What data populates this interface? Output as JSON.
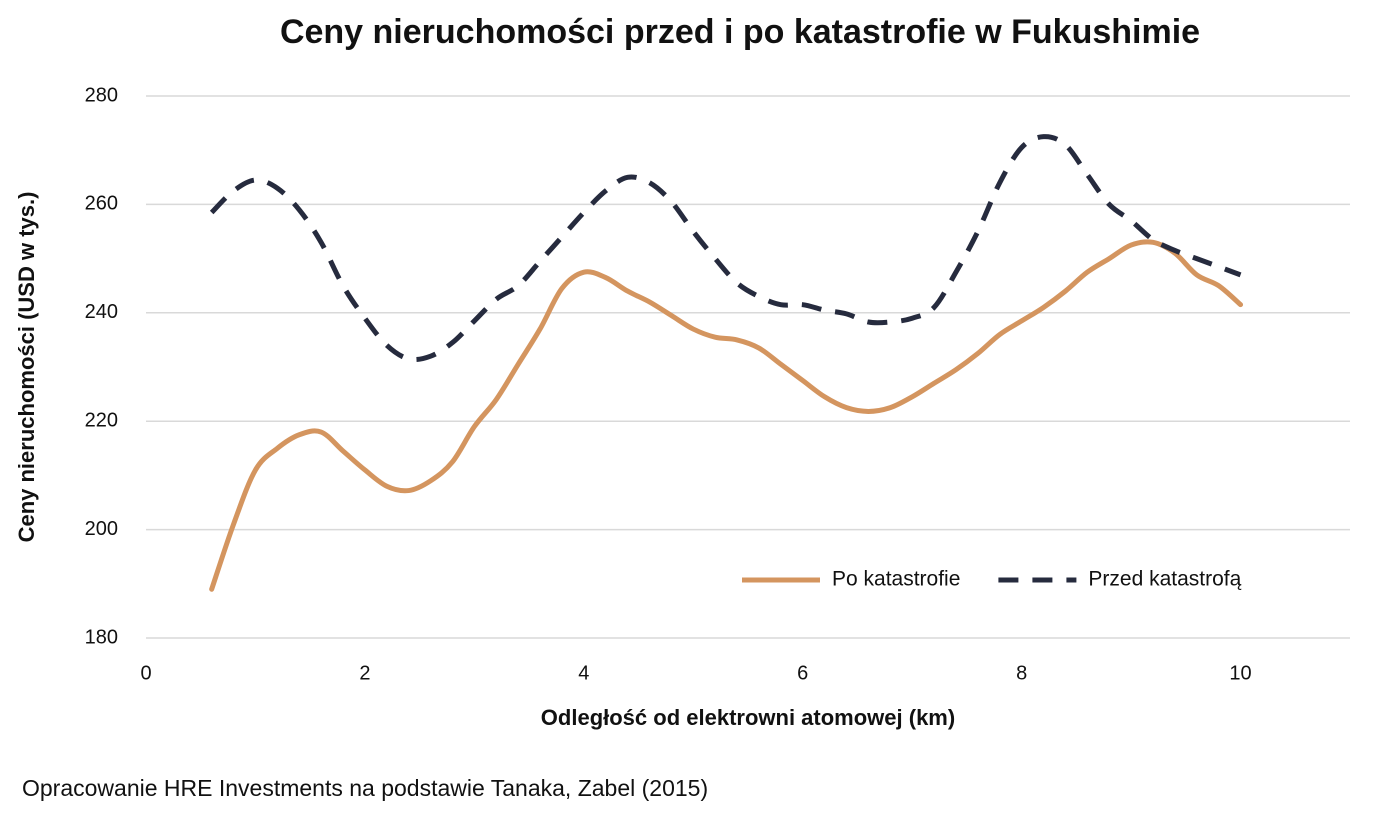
{
  "chart_data": {
    "type": "line",
    "title": "Ceny nieruchomości przed i po katastrofie w Fukushimie",
    "x_label": "Odległość od elektrowni atomowej (km)",
    "y_label": "Ceny nieruchomości (USD w tys.)",
    "source": "Opracowanie HRE Investments na podstawie Tanaka, Zabel (2015)",
    "x": [
      0.6,
      0.8,
      1.0,
      1.2,
      1.4,
      1.6,
      1.8,
      2.0,
      2.2,
      2.4,
      2.6,
      2.8,
      3.0,
      3.2,
      3.4,
      3.6,
      3.8,
      4.0,
      4.2,
      4.4,
      4.6,
      4.8,
      5.0,
      5.2,
      5.4,
      5.6,
      5.8,
      6.0,
      6.2,
      6.4,
      6.6,
      6.8,
      7.0,
      7.2,
      7.4,
      7.6,
      7.8,
      8.0,
      8.2,
      8.4,
      8.6,
      8.8,
      9.0,
      9.2,
      9.4,
      9.6,
      9.8,
      10.0
    ],
    "series": [
      {
        "name": "Po katastrofie",
        "color": "#d4955f",
        "dashed": false,
        "values": [
          189,
          201,
          211,
          215,
          217.5,
          218,
          214.5,
          211,
          208,
          207.2,
          209,
          212.5,
          219,
          224,
          230.5,
          237,
          244.5,
          247.5,
          246.5,
          244,
          242,
          239.5,
          237,
          235.5,
          235,
          233.5,
          230.5,
          227.5,
          224.5,
          222.5,
          221.8,
          222.5,
          224.5,
          227,
          229.5,
          232.5,
          236,
          238.5,
          241,
          244,
          247.5,
          250,
          252.5,
          253,
          251,
          247,
          245,
          241.5
        ]
      },
      {
        "name": "Przed katastrofą",
        "color": "#262b3e",
        "dashed": true,
        "values": [
          258.5,
          262.5,
          264.5,
          263,
          259,
          253,
          245,
          239,
          234,
          231.5,
          232,
          234.5,
          238.5,
          242.5,
          245,
          249.5,
          254,
          258.5,
          262.5,
          265,
          264,
          260.5,
          255,
          250,
          245.5,
          243,
          241.5,
          241.5,
          240.5,
          239.8,
          238.3,
          238.3,
          239,
          241,
          247.5,
          255,
          264,
          270.5,
          272.5,
          271,
          265.5,
          260,
          257,
          253.5,
          251.5,
          250,
          248.5,
          247
        ]
      }
    ],
    "xlim": [
      0,
      11
    ],
    "xticks": [
      0,
      2,
      4,
      6,
      8,
      10
    ],
    "ylim": [
      180,
      280
    ],
    "yticks": [
      180,
      200,
      220,
      240,
      260,
      280
    ],
    "grid": true,
    "legend": "lower right"
  }
}
